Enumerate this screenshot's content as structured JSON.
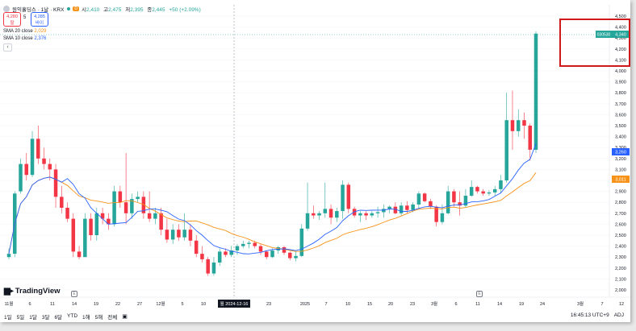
{
  "symbol": {
    "name": "원익홀딩스 · 1날 · KRX",
    "interval_badge": "D",
    "ohlc": {
      "open_label": "시",
      "open": "2,410",
      "high_label": "고",
      "high": "2,475",
      "low_label": "저",
      "low": "2,395",
      "close_label": "종",
      "close": "2,445",
      "change": "+50 (+2.09%)"
    }
  },
  "trade_buttons": {
    "sell_price": "4,280",
    "sell_label": "팔",
    "spread": "5",
    "buy_price": "4,285",
    "buy_label": "바이"
  },
  "indicators": {
    "sma20": {
      "label": "SMA 20 close",
      "value": "2,029",
      "color": "#f7931a"
    },
    "sma10": {
      "label": "SMA 10 close",
      "value": "2,376",
      "color": "#2962ff"
    }
  },
  "price_axis": {
    "ticks": [
      "4,500",
      "4,400",
      "4,300",
      "4,200",
      "4,100",
      "4,000",
      "3,900",
      "3,800",
      "3,700",
      "3,600",
      "3,500",
      "3,400",
      "3,300",
      "3,200",
      "3,100",
      "3,000",
      "2,900",
      "2,800",
      "2,700",
      "2,600",
      "2,500",
      "2,400",
      "2,300",
      "2,200",
      "2,100",
      "2,000"
    ],
    "last_price_tag": "4,340",
    "last_symbol_tag": "030530",
    "sma10_tag": "3,260",
    "sma20_tag": "3,011"
  },
  "time_axis": {
    "labels": [
      "11월",
      "6",
      "11",
      "14",
      "19",
      "22",
      "27",
      "12월",
      "5",
      "10",
      "23",
      "2025",
      "7",
      "10",
      "15",
      "20",
      "23",
      "3월",
      "6",
      "11",
      "14",
      "19",
      "24",
      "3월",
      "7",
      "12"
    ],
    "crosshair_label": "월 2024-12-16"
  },
  "branding": {
    "logo_text": "TradingView"
  },
  "timeframes": [
    "1일",
    "5일",
    "1달",
    "3달",
    "6달",
    "YTD",
    "1해",
    "5해",
    "전체"
  ],
  "status": {
    "time": "16:45:13 UTC+9",
    "adj": "ADJ"
  },
  "colors": {
    "up": "#26a69a",
    "down": "#f23645",
    "sma20": "#f7931a",
    "sma10": "#2962ff",
    "highlight": "#d0191c"
  },
  "chart_data": {
    "type": "candlestick",
    "y_range": [
      2000,
      4500
    ],
    "candles": [
      [
        2300,
        2380,
        2280,
        2330
      ],
      [
        2330,
        2900,
        2300,
        2880
      ],
      [
        2900,
        3200,
        2880,
        3150
      ],
      [
        3150,
        3250,
        3000,
        3050
      ],
      [
        3050,
        3450,
        3030,
        3380
      ],
      [
        3380,
        3500,
        3150,
        3200
      ],
      [
        3200,
        3300,
        3100,
        3150
      ],
      [
        3150,
        3200,
        3000,
        3100
      ],
      [
        3100,
        3150,
        2750,
        2850
      ],
      [
        2850,
        2950,
        2700,
        2750
      ],
      [
        2750,
        2800,
        2620,
        2650
      ],
      [
        2650,
        2700,
        2300,
        2350
      ],
      [
        2350,
        2400,
        2280,
        2300
      ],
      [
        2300,
        2700,
        2300,
        2650
      ],
      [
        2650,
        2700,
        2450,
        2500
      ],
      [
        2500,
        2750,
        2450,
        2700
      ],
      [
        2700,
        2750,
        2600,
        2650
      ],
      [
        2650,
        2700,
        2550,
        2600
      ],
      [
        2600,
        2950,
        2580,
        2900
      ],
      [
        2900,
        2950,
        2750,
        2800
      ],
      [
        2800,
        3250,
        2600,
        2700
      ],
      [
        2700,
        2880,
        2650,
        2830
      ],
      [
        2830,
        2900,
        2800,
        2850
      ],
      [
        2850,
        2900,
        2650,
        2700
      ],
      [
        2700,
        2900,
        2620,
        2650
      ],
      [
        2650,
        2750,
        2600,
        2700
      ],
      [
        2700,
        2750,
        2500,
        2550
      ],
      [
        2550,
        2650,
        2430,
        2460
      ],
      [
        2460,
        2600,
        2420,
        2550
      ],
      [
        2550,
        2600,
        2450,
        2480
      ],
      [
        2480,
        2700,
        2450,
        2550
      ],
      [
        2550,
        2600,
        2400,
        2450
      ],
      [
        2450,
        2500,
        2300,
        2330
      ],
      [
        2330,
        2400,
        2250,
        2280
      ],
      [
        2280,
        2300,
        2130,
        2150
      ],
      [
        2150,
        2300,
        2130,
        2250
      ],
      [
        2250,
        2380,
        2220,
        2350
      ],
      [
        2350,
        2380,
        2300,
        2320
      ],
      [
        2320,
        2400,
        2300,
        2360
      ],
      [
        2360,
        2420,
        2320,
        2400
      ],
      [
        2400,
        2450,
        2380,
        2420
      ],
      [
        2420,
        2450,
        2380,
        2430
      ],
      [
        2430,
        2450,
        2380,
        2400
      ],
      [
        2400,
        2420,
        2320,
        2350
      ],
      [
        2350,
        2360,
        2280,
        2300
      ],
      [
        2300,
        2380,
        2290,
        2360
      ],
      [
        2360,
        2400,
        2330,
        2390
      ],
      [
        2390,
        2400,
        2320,
        2340
      ],
      [
        2340,
        2350,
        2270,
        2290
      ],
      [
        2290,
        2350,
        2260,
        2310
      ],
      [
        2310,
        2600,
        2300,
        2560
      ],
      [
        2560,
        2980,
        2540,
        2700
      ],
      [
        2700,
        2770,
        2650,
        2680
      ],
      [
        2680,
        2720,
        2640,
        2700
      ],
      [
        2700,
        2980,
        2660,
        2740
      ],
      [
        2740,
        2780,
        2600,
        2660
      ],
      [
        2660,
        2750,
        2620,
        2720
      ],
      [
        2720,
        3000,
        2650,
        2960
      ],
      [
        2960,
        2980,
        2700,
        2740
      ],
      [
        2740,
        2760,
        2660,
        2680
      ],
      [
        2680,
        2720,
        2620,
        2700
      ],
      [
        2700,
        2720,
        2640,
        2680
      ],
      [
        2680,
        2720,
        2660,
        2700
      ],
      [
        2700,
        2760,
        2660,
        2710
      ],
      [
        2710,
        2780,
        2660,
        2740
      ],
      [
        2740,
        2770,
        2700,
        2760
      ],
      [
        2760,
        2800,
        2690,
        2700
      ],
      [
        2700,
        2800,
        2680,
        2770
      ],
      [
        2770,
        2810,
        2700,
        2730
      ],
      [
        2730,
        2800,
        2710,
        2780
      ],
      [
        2780,
        2900,
        2740,
        2880
      ],
      [
        2880,
        2890,
        2800,
        2810
      ],
      [
        2810,
        2830,
        2740,
        2760
      ],
      [
        2760,
        2770,
        2580,
        2620
      ],
      [
        2620,
        2780,
        2600,
        2700
      ],
      [
        2700,
        2950,
        2690,
        2900
      ],
      [
        2900,
        2920,
        2760,
        2800
      ],
      [
        2800,
        2900,
        2680,
        2770
      ],
      [
        2770,
        2920,
        2750,
        2860
      ],
      [
        2860,
        3000,
        2850,
        2940
      ],
      [
        2940,
        2950,
        2880,
        2900
      ],
      [
        2900,
        2920,
        2860,
        2880
      ],
      [
        2880,
        2910,
        2860,
        2890
      ],
      [
        2890,
        2950,
        2860,
        2920
      ],
      [
        2920,
        3050,
        2880,
        3000
      ],
      [
        3000,
        3800,
        2980,
        3550
      ],
      [
        3550,
        3820,
        3280,
        3450
      ],
      [
        3450,
        3650,
        3400,
        3550
      ],
      [
        3550,
        3620,
        3380,
        3500
      ],
      [
        3500,
        3520,
        3180,
        3280
      ],
      [
        3280,
        4360,
        3250,
        4340
      ]
    ]
  }
}
